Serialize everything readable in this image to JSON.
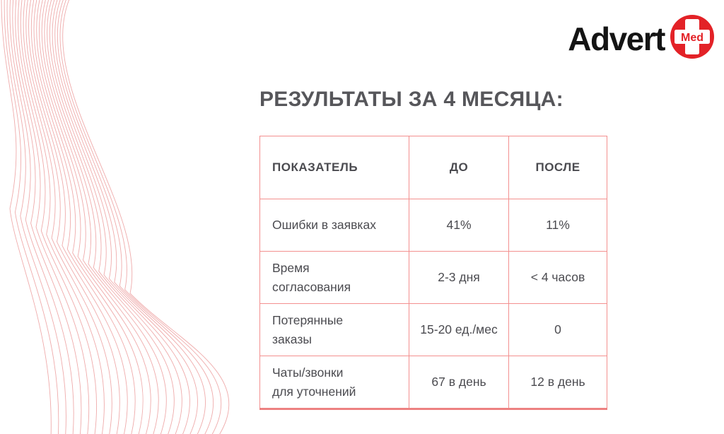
{
  "logo": {
    "brand": "Advert",
    "badge_text": "Med"
  },
  "title": "РЕЗУЛЬТАТЫ ЗА 4 МЕСЯЦА:",
  "table": {
    "columns": [
      "ПОКАЗАТЕЛЬ",
      "ДО",
      "ПОСЛЕ"
    ],
    "rows": [
      {
        "label": "Ошибки в заявках",
        "before": "41%",
        "after": "11%"
      },
      {
        "label": "Время\nсогласования",
        "before": "2-3 дня",
        "after": "< 4 часов"
      },
      {
        "label": "Потерянные\nзаказы",
        "before": "15-20 ед./мес",
        "after": "0"
      },
      {
        "label": "Чаты/звонки\nдля уточнений",
        "before": "67 в день",
        "after": "12 в день"
      }
    ]
  },
  "colors": {
    "brand_red": "#e32227",
    "table_border": "#f3908f",
    "table_border_bottom": "#ed8181",
    "line_art": "#e05858",
    "text_dark": "#4b4b50",
    "title_gray": "#56565a"
  }
}
